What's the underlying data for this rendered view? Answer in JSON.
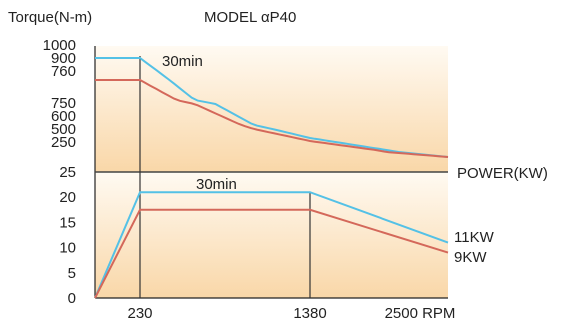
{
  "colors": {
    "continuous": "#d4685a",
    "thirty_min": "#54c1e6",
    "axis": "#222222",
    "bg_top": "#fffaf2",
    "bg_bottom": "#f9d7a8"
  },
  "chart_data": {
    "type": "line",
    "title": "MODEL αP40",
    "torque_panel": {
      "ylabel": "Torque(N-m)",
      "tick_labels": [
        "1000",
        "900",
        "760",
        "750",
        "600",
        "500",
        "250"
      ],
      "annotation": "30min",
      "series": [
        {
          "name": "",
          "rpm": [
            0,
            230,
            600,
            1000,
            1380,
            2000,
            2500
          ],
          "torque": [
            900,
            900,
            640,
            470,
            380,
            300,
            250
          ]
        },
        {
          "name": "",
          "rpm": [
            0,
            230,
            600,
            1000,
            1380,
            2000,
            2500
          ],
          "torque": [
            760,
            760,
            580,
            440,
            360,
            290,
            250
          ]
        }
      ]
    },
    "power_panel": {
      "ylabel": "POWER(KW)",
      "ylim": [
        0,
        25
      ],
      "y_ticks": [
        "0",
        "5",
        "10",
        "15",
        "20",
        "25"
      ],
      "x_ticks": [
        "230",
        "1380",
        "2500 RPM"
      ],
      "annotation": "30min",
      "series": [
        {
          "name": "11KW",
          "rpm": [
            0,
            230,
            1380,
            2500
          ],
          "power": [
            0,
            21,
            21,
            11
          ]
        },
        {
          "name": "9KW",
          "rpm": [
            0,
            230,
            1380,
            2500
          ],
          "power": [
            0,
            17.5,
            17.5,
            9
          ]
        }
      ]
    }
  }
}
